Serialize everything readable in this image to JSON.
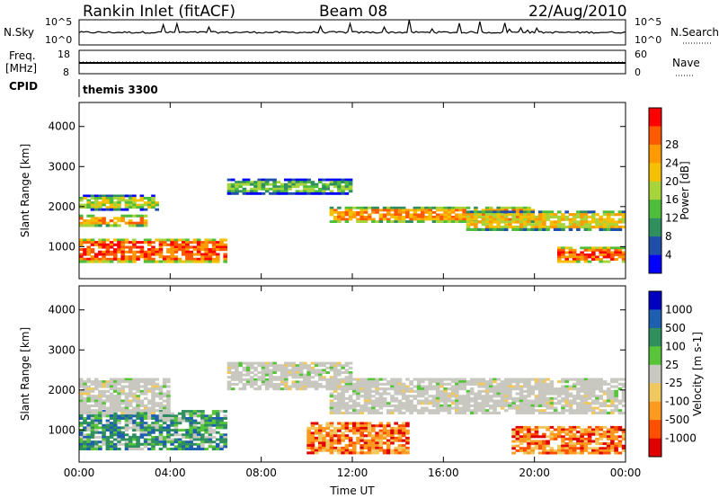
{
  "header": {
    "title": "Rankin Inlet (fitACF)",
    "beam": "Beam 08",
    "date": "22/Aug/2010"
  },
  "aux": {
    "nsky_label": "N.Sky",
    "nsky_ticks": [
      "10^5",
      "10^0"
    ],
    "nsearch_label": "N.Search",
    "nsearch_ticks": [
      "10^5",
      "10^0"
    ],
    "freq_label": "Freq.",
    "freq_unit": "[MHz]",
    "freq_ticks": [
      "18",
      "8"
    ],
    "nave_label": "Nave",
    "nave_ticks": [
      "60",
      "0"
    ],
    "cpid_label": "CPID",
    "cpid_value": "themis 3300"
  },
  "colors": {
    "power_scale": [
      "#0000ff",
      "#1f4fa8",
      "#2f8f5f",
      "#4ebd3a",
      "#a7d43a",
      "#f5c000",
      "#ff9a00",
      "#ff5a00",
      "#ff0000"
    ],
    "velocity_scale": [
      "#0000c0",
      "#1f5fb0",
      "#2f8f5f",
      "#57c43a",
      "#c8c8c0",
      "#f0c860",
      "#ff9a20",
      "#ff5000",
      "#e00000"
    ]
  },
  "chart_data": [
    {
      "type": "heatmap",
      "panel": "power",
      "ylabel": "Slant Range [km]",
      "ylim": [
        200,
        4600
      ],
      "yticks": [
        "1000",
        "2000",
        "3000",
        "4000"
      ],
      "colorbar_label": "Power [dB]",
      "colorbar_ticks": [
        "4",
        "8",
        "12",
        "16",
        "20",
        "24",
        "28"
      ],
      "regions": [
        {
          "t": [
            0.0,
            6.5
          ],
          "range": [
            600,
            1200
          ],
          "value": 28
        },
        {
          "t": [
            0.0,
            3.0
          ],
          "range": [
            1500,
            1800
          ],
          "value": 22
        },
        {
          "t": [
            0.0,
            3.5
          ],
          "range": [
            1900,
            2300
          ],
          "value": 14
        },
        {
          "t": [
            6.5,
            12.0
          ],
          "range": [
            2300,
            2700
          ],
          "value": 10
        },
        {
          "t": [
            11.0,
            20.0
          ],
          "range": [
            1600,
            2000
          ],
          "value": 22
        },
        {
          "t": [
            17.0,
            24.0
          ],
          "range": [
            1400,
            1900
          ],
          "value": 20
        },
        {
          "t": [
            21.0,
            24.0
          ],
          "range": [
            600,
            1000
          ],
          "value": 28
        }
      ]
    },
    {
      "type": "heatmap",
      "panel": "velocity",
      "xlabel": "Time UT",
      "xticks": [
        "00:00",
        "04:00",
        "08:00",
        "12:00",
        "16:00",
        "20:00",
        "00:00"
      ],
      "ylabel": "Slant Range [km]",
      "ylim": [
        200,
        4600
      ],
      "yticks": [
        "1000",
        "2000",
        "3000",
        "4000"
      ],
      "colorbar_label": "Velocity [m s-1]",
      "colorbar_ticks": [
        "1000",
        "500",
        "100",
        "25",
        "-25",
        "-100",
        "-500",
        "-1000"
      ],
      "regions": [
        {
          "t": [
            0.0,
            6.5
          ],
          "range": [
            500,
            1500
          ],
          "value": 100
        },
        {
          "t": [
            0.0,
            4.0
          ],
          "range": [
            1400,
            2300
          ],
          "value": 0
        },
        {
          "t": [
            6.5,
            12.0
          ],
          "range": [
            2000,
            2700
          ],
          "value": 0
        },
        {
          "t": [
            11.0,
            24.0
          ],
          "range": [
            1400,
            2300
          ],
          "value": 0
        },
        {
          "t": [
            10.0,
            14.5
          ],
          "range": [
            400,
            1200
          ],
          "value": -300
        },
        {
          "t": [
            19.0,
            24.0
          ],
          "range": [
            400,
            1100
          ],
          "value": -300
        }
      ]
    }
  ]
}
